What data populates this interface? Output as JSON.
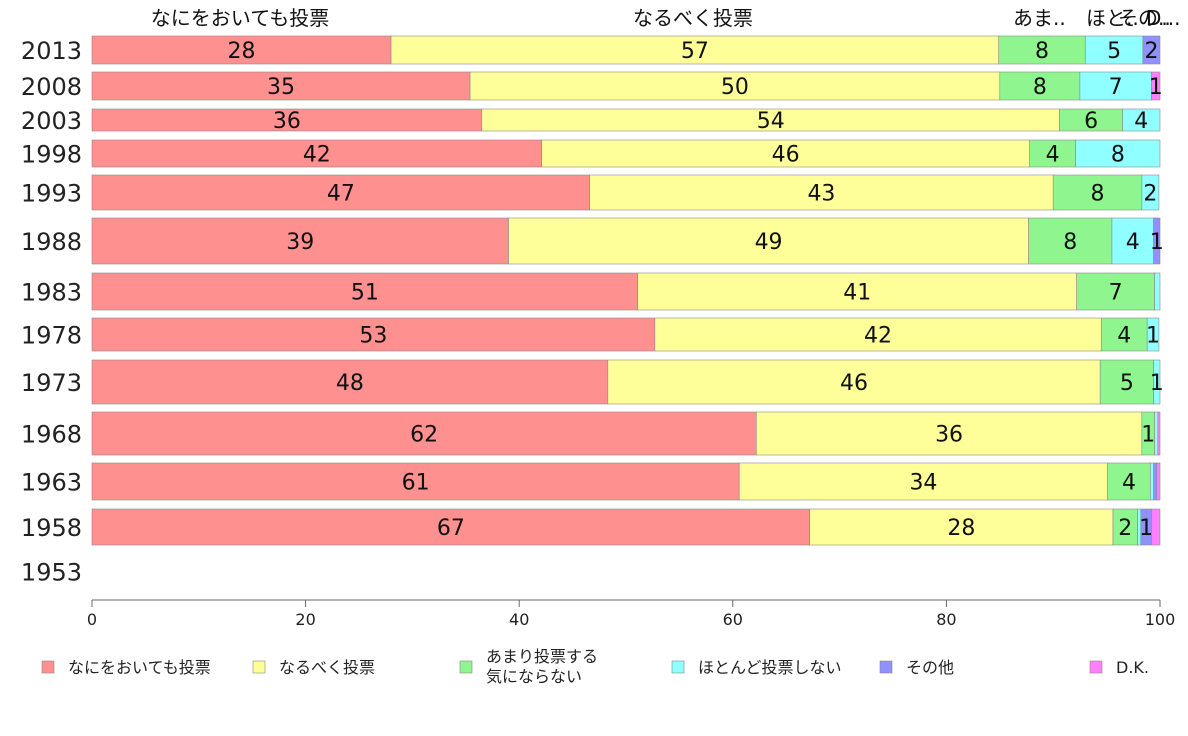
{
  "chart_data": {
    "type": "bar",
    "orientation": "horizontal",
    "stacked": true,
    "categories": [
      "2013",
      "2008",
      "2003",
      "1998",
      "1993",
      "1988",
      "1983",
      "1978",
      "1973",
      "1968",
      "1963",
      "1958",
      "1953"
    ],
    "series": [
      {
        "name": "なにをおいても投票",
        "color": "#ff9090",
        "top_label": "なにをおいても投票",
        "values": [
          28,
          35.4,
          36.5,
          42.1,
          46.6,
          39,
          51.1,
          52.7,
          48.3,
          62.2,
          60.6,
          67.2,
          null
        ],
        "labels": [
          "28",
          "35",
          "36",
          "42",
          "47",
          "39",
          "51",
          "53",
          "48",
          "62",
          "61",
          "67",
          ""
        ]
      },
      {
        "name": "なるべく投票",
        "color": "#ffff9a",
        "top_label": "なるべく投票",
        "values": [
          56.9,
          49.6,
          54.1,
          45.7,
          43.4,
          48.7,
          41.1,
          41.8,
          46.1,
          36.1,
          34.5,
          28.4,
          null
        ],
        "labels": [
          "57",
          "50",
          "54",
          "46",
          "43",
          "49",
          "41",
          "42",
          "46",
          "36",
          "34",
          "28",
          ""
        ]
      },
      {
        "name": "あまり投票する気にならない",
        "legend_lines": [
          "あまり投票する",
          "気にならない"
        ],
        "color": "#8ff68f",
        "top_label": "あま..",
        "values": [
          8.1,
          7.5,
          5.9,
          4.3,
          8.3,
          7.8,
          7.3,
          4.3,
          5.0,
          1.2,
          4.0,
          2.3,
          null
        ],
        "labels": [
          "8",
          "8",
          "6",
          "4",
          "8",
          "8",
          "7",
          "4",
          "5",
          "1",
          "4",
          "2",
          ""
        ]
      },
      {
        "name": "ほとんど投票しない",
        "color": "#90ffff",
        "top_label": "ほと..",
        "values": [
          5.4,
          6.7,
          3.5,
          7.9,
          1.6,
          3.9,
          0.5,
          1.1,
          0.6,
          0.3,
          0.3,
          0.3,
          null
        ],
        "labels": [
          "5",
          "7",
          "4",
          "8",
          "2",
          "4",
          "",
          "1",
          "1",
          "",
          "",
          "",
          ""
        ]
      },
      {
        "name": "その他",
        "color": "#9090ff",
        "top_label": "その..",
        "values": [
          1.6,
          0,
          0,
          0,
          0,
          0.6,
          0,
          0,
          0,
          0,
          0.3,
          1.0,
          null
        ],
        "labels": [
          "2",
          "",
          "",
          "",
          "",
          "1",
          "",
          "",
          "",
          "",
          "",
          "1",
          ""
        ]
      },
      {
        "name": "D.K.",
        "color": "#ff80ff",
        "top_label": "D...",
        "values": [
          0,
          0.8,
          0,
          0,
          0,
          0,
          0,
          0,
          0,
          0.2,
          0.3,
          0.8,
          null
        ],
        "labels": [
          "",
          "1",
          "",
          "",
          "",
          "",
          "",
          "",
          "",
          "",
          "",
          "",
          ""
        ]
      }
    ],
    "xlim": [
      0,
      100
    ],
    "xticks": [
      "0",
      "20",
      "40",
      "60",
      "80",
      "100"
    ],
    "legend_position": "bottom",
    "grid": false
  }
}
